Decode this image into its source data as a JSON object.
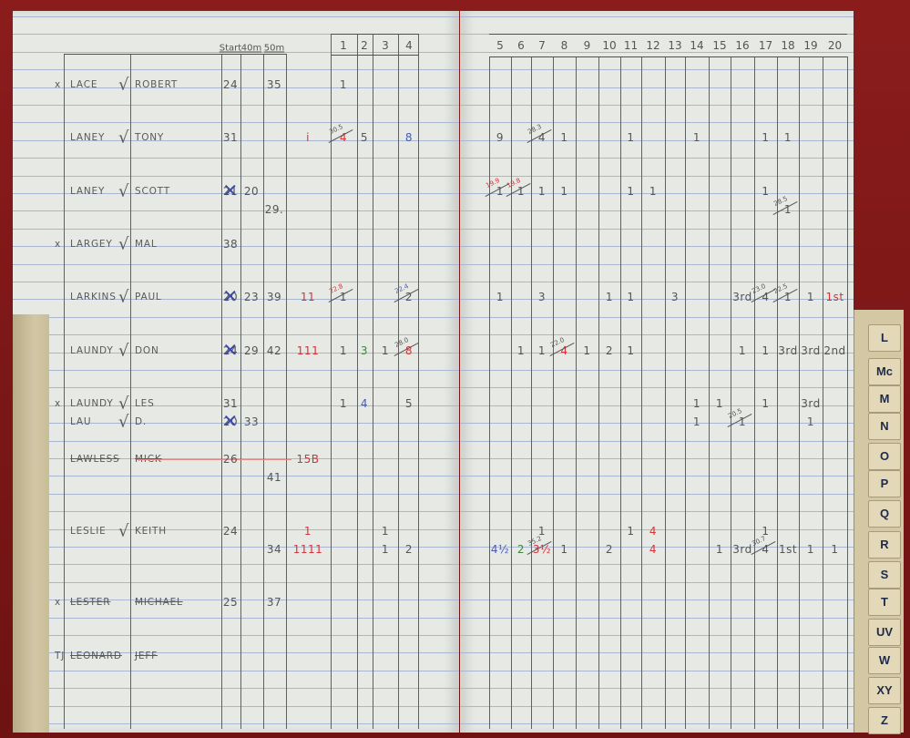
{
  "header": {
    "start": "Start",
    "m40": "40m",
    "m50": "50m"
  },
  "event_numbers": [
    "1",
    "2",
    "3",
    "4",
    "5",
    "6",
    "7",
    "8",
    "9",
    "10",
    "11",
    "12",
    "13",
    "14",
    "15",
    "16",
    "17",
    "18",
    "19",
    "20"
  ],
  "index_tabs": [
    "L",
    "Mc",
    "M",
    "N",
    "O",
    "P",
    "Q",
    "R",
    "S",
    "T",
    "UV",
    "W",
    "XY",
    "Z"
  ],
  "colors": {
    "pencil": "#555555",
    "red": "#d3343a",
    "blue": "#4a5ab0",
    "green": "#3a8a3a",
    "cover": "#8b1c1c"
  },
  "rows": [
    {
      "lines": [
        {
          "mark": "x",
          "surname": "LACE",
          "tick": "√",
          "first": "ROBERT",
          "cells": [
            {
              "col": "start",
              "text": "24"
            },
            {
              "col": "50m",
              "text": "35"
            },
            {
              "col": "1",
              "text": "1"
            }
          ]
        }
      ]
    },
    {
      "lines": [
        {
          "surname": "LANEY",
          "tick": "√",
          "first": "TONY",
          "cells": [
            {
              "col": "start",
              "text": "31"
            },
            {
              "col": "tally",
              "text": "i",
              "color": "red"
            },
            {
              "col": "1",
              "text": "4",
              "color": "red",
              "note": "30.5"
            },
            {
              "col": "2",
              "text": "5"
            },
            {
              "col": "4",
              "text": "8",
              "color": "blue"
            },
            {
              "col": "5",
              "text": "9"
            },
            {
              "col": "7",
              "text": "4",
              "note": "28.3"
            },
            {
              "col": "8",
              "text": "1"
            },
            {
              "col": "11",
              "text": "1"
            },
            {
              "col": "14",
              "text": "1"
            },
            {
              "col": "17",
              "text": "1"
            },
            {
              "col": "18",
              "text": "1"
            }
          ]
        }
      ]
    },
    {
      "lines": [
        {
          "surname": "LANEY",
          "tick": "√",
          "first": "SCOTT",
          "cells": [
            {
              "col": "start",
              "text": "21",
              "struck": true
            },
            {
              "col": "40m",
              "text": "20"
            },
            {
              "col": "5",
              "text": "1",
              "note": "19.9",
              "note_color": "red"
            },
            {
              "col": "6",
              "text": "1",
              "note": "19.8",
              "note_color": "red"
            },
            {
              "col": "7",
              "text": "1"
            },
            {
              "col": "8",
              "text": "1"
            },
            {
              "col": "11",
              "text": "1"
            },
            {
              "col": "12",
              "text": "1"
            },
            {
              "col": "17",
              "text": "1"
            }
          ]
        },
        {
          "cells": [
            {
              "col": "50m",
              "text": "29."
            },
            {
              "col": "18",
              "text": "1",
              "note": "28.5"
            }
          ]
        }
      ]
    },
    {
      "lines": [
        {
          "mark": "x",
          "surname": "LARGEY",
          "tick": "√",
          "first": "MAL",
          "cells": [
            {
              "col": "start",
              "text": "38"
            }
          ]
        }
      ]
    },
    {
      "lines": [
        {
          "surname": "LARKINS",
          "tick": "√",
          "first": "PAUL",
          "cells": [
            {
              "col": "start",
              "text": "20",
              "struck": true
            },
            {
              "col": "40m",
              "text": "23"
            },
            {
              "col": "50m",
              "text": "39"
            },
            {
              "col": "tally",
              "text": "11",
              "color": "red"
            },
            {
              "col": "1",
              "text": "1",
              "note": "22.8",
              "note_color": "red"
            },
            {
              "col": "4",
              "text": "2",
              "note": "22.4",
              "note_color": "blue"
            },
            {
              "col": "5",
              "text": "1"
            },
            {
              "col": "7",
              "text": "3"
            },
            {
              "col": "10",
              "text": "1"
            },
            {
              "col": "11",
              "text": "1"
            },
            {
              "col": "13",
              "text": "3"
            },
            {
              "col": "16",
              "text": "3rd"
            },
            {
              "col": "17",
              "text": "4",
              "note": "23.0"
            },
            {
              "col": "18",
              "text": "1",
              "note": "22.5"
            },
            {
              "col": "19",
              "text": "1"
            },
            {
              "col": "20",
              "text": "1st",
              "color": "red"
            }
          ]
        }
      ]
    },
    {
      "lines": [
        {
          "surname": "LAUNDY",
          "tick": "√",
          "first": "DON",
          "cells": [
            {
              "col": "start",
              "text": "24",
              "struck": true
            },
            {
              "col": "40m",
              "text": "29"
            },
            {
              "col": "50m",
              "text": "42"
            },
            {
              "col": "tally",
              "text": "111",
              "color": "red"
            },
            {
              "col": "1",
              "text": "1"
            },
            {
              "col": "2",
              "text": "3",
              "color": "green"
            },
            {
              "col": "3",
              "text": "1"
            },
            {
              "col": "4",
              "text": "8",
              "color": "red",
              "note": "28.0"
            },
            {
              "col": "6",
              "text": "1"
            },
            {
              "col": "7",
              "text": "1"
            },
            {
              "col": "8",
              "text": "4",
              "color": "red",
              "note": "22.0"
            },
            {
              "col": "9",
              "text": "1"
            },
            {
              "col": "10",
              "text": "2"
            },
            {
              "col": "11",
              "text": "1"
            },
            {
              "col": "16",
              "text": "1"
            },
            {
              "col": "17",
              "text": "1"
            },
            {
              "col": "18",
              "text": "3rd"
            },
            {
              "col": "19",
              "text": "3rd"
            },
            {
              "col": "20",
              "text": "2nd"
            }
          ]
        }
      ]
    },
    {
      "lines": [
        {
          "mark": "x",
          "surname": "LAUNDY",
          "tick": "√",
          "first": "LES",
          "cells": [
            {
              "col": "start",
              "text": "31"
            },
            {
              "col": "1",
              "text": "1"
            },
            {
              "col": "2",
              "text": "4",
              "color": "blue"
            },
            {
              "col": "4",
              "text": "5"
            },
            {
              "col": "14",
              "text": "1"
            },
            {
              "col": "15",
              "text": "1"
            },
            {
              "col": "17",
              "text": "1"
            },
            {
              "col": "19",
              "text": "3rd"
            }
          ]
        },
        {
          "surname": "LAU",
          "tick": "√",
          "first": "D.",
          "cells": [
            {
              "col": "start",
              "text": "20",
              "struck": true
            },
            {
              "col": "40m",
              "text": "33"
            },
            {
              "col": "14",
              "text": "1"
            },
            {
              "col": "16",
              "text": "1",
              "note": "20.5"
            },
            {
              "col": "19",
              "text": "1"
            }
          ]
        }
      ]
    },
    {
      "lines": [
        {
          "surname": "LAWLESS",
          "first": "MICK",
          "struck": true,
          "cells": [
            {
              "col": "start",
              "text": "26"
            },
            {
              "col": "tally",
              "text": "15B",
              "color": "red"
            }
          ]
        },
        {
          "cells": [
            {
              "col": "50m",
              "text": "41"
            }
          ]
        }
      ]
    },
    {
      "lines": [
        {
          "surname": "LESLIE",
          "tick": "√",
          "first": "KEITH",
          "cells": [
            {
              "col": "start",
              "text": "24"
            },
            {
              "col": "tally",
              "text": "1",
              "color": "red"
            },
            {
              "col": "3",
              "text": "1"
            },
            {
              "col": "7",
              "text": "1"
            },
            {
              "col": "11",
              "text": "1"
            },
            {
              "col": "12",
              "text": "4",
              "color": "red"
            },
            {
              "col": "17",
              "text": "1"
            }
          ]
        },
        {
          "cells": [
            {
              "col": "50m",
              "text": "34"
            },
            {
              "col": "tally",
              "text": "1111",
              "color": "red"
            },
            {
              "col": "3",
              "text": "1"
            },
            {
              "col": "4",
              "text": "2"
            },
            {
              "col": "5",
              "text": "4½",
              "color": "blue"
            },
            {
              "col": "6",
              "text": "2",
              "color": "green"
            },
            {
              "col": "7",
              "text": "3½",
              "color": "red",
              "note": "35.2"
            },
            {
              "col": "8",
              "text": "1"
            },
            {
              "col": "10",
              "text": "2"
            },
            {
              "col": "12",
              "text": "4",
              "color": "red"
            },
            {
              "col": "15",
              "text": "1"
            },
            {
              "col": "16",
              "text": "3rd"
            },
            {
              "col": "17",
              "text": "4",
              "note": "30.7"
            },
            {
              "col": "18",
              "text": "1st"
            },
            {
              "col": "19",
              "text": "1"
            },
            {
              "col": "20",
              "text": "1"
            }
          ]
        }
      ]
    },
    {
      "lines": [
        {
          "mark": "x",
          "surname": "LESTER",
          "first": "MICHAEL",
          "struck": true,
          "cells": [
            {
              "col": "start",
              "text": "25"
            },
            {
              "col": "50m",
              "text": "37"
            }
          ]
        }
      ]
    },
    {
      "lines": [
        {
          "mark": "TJ",
          "surname": "LEONARD",
          "first": "JEFF",
          "struck": true,
          "cells": []
        }
      ]
    }
  ]
}
